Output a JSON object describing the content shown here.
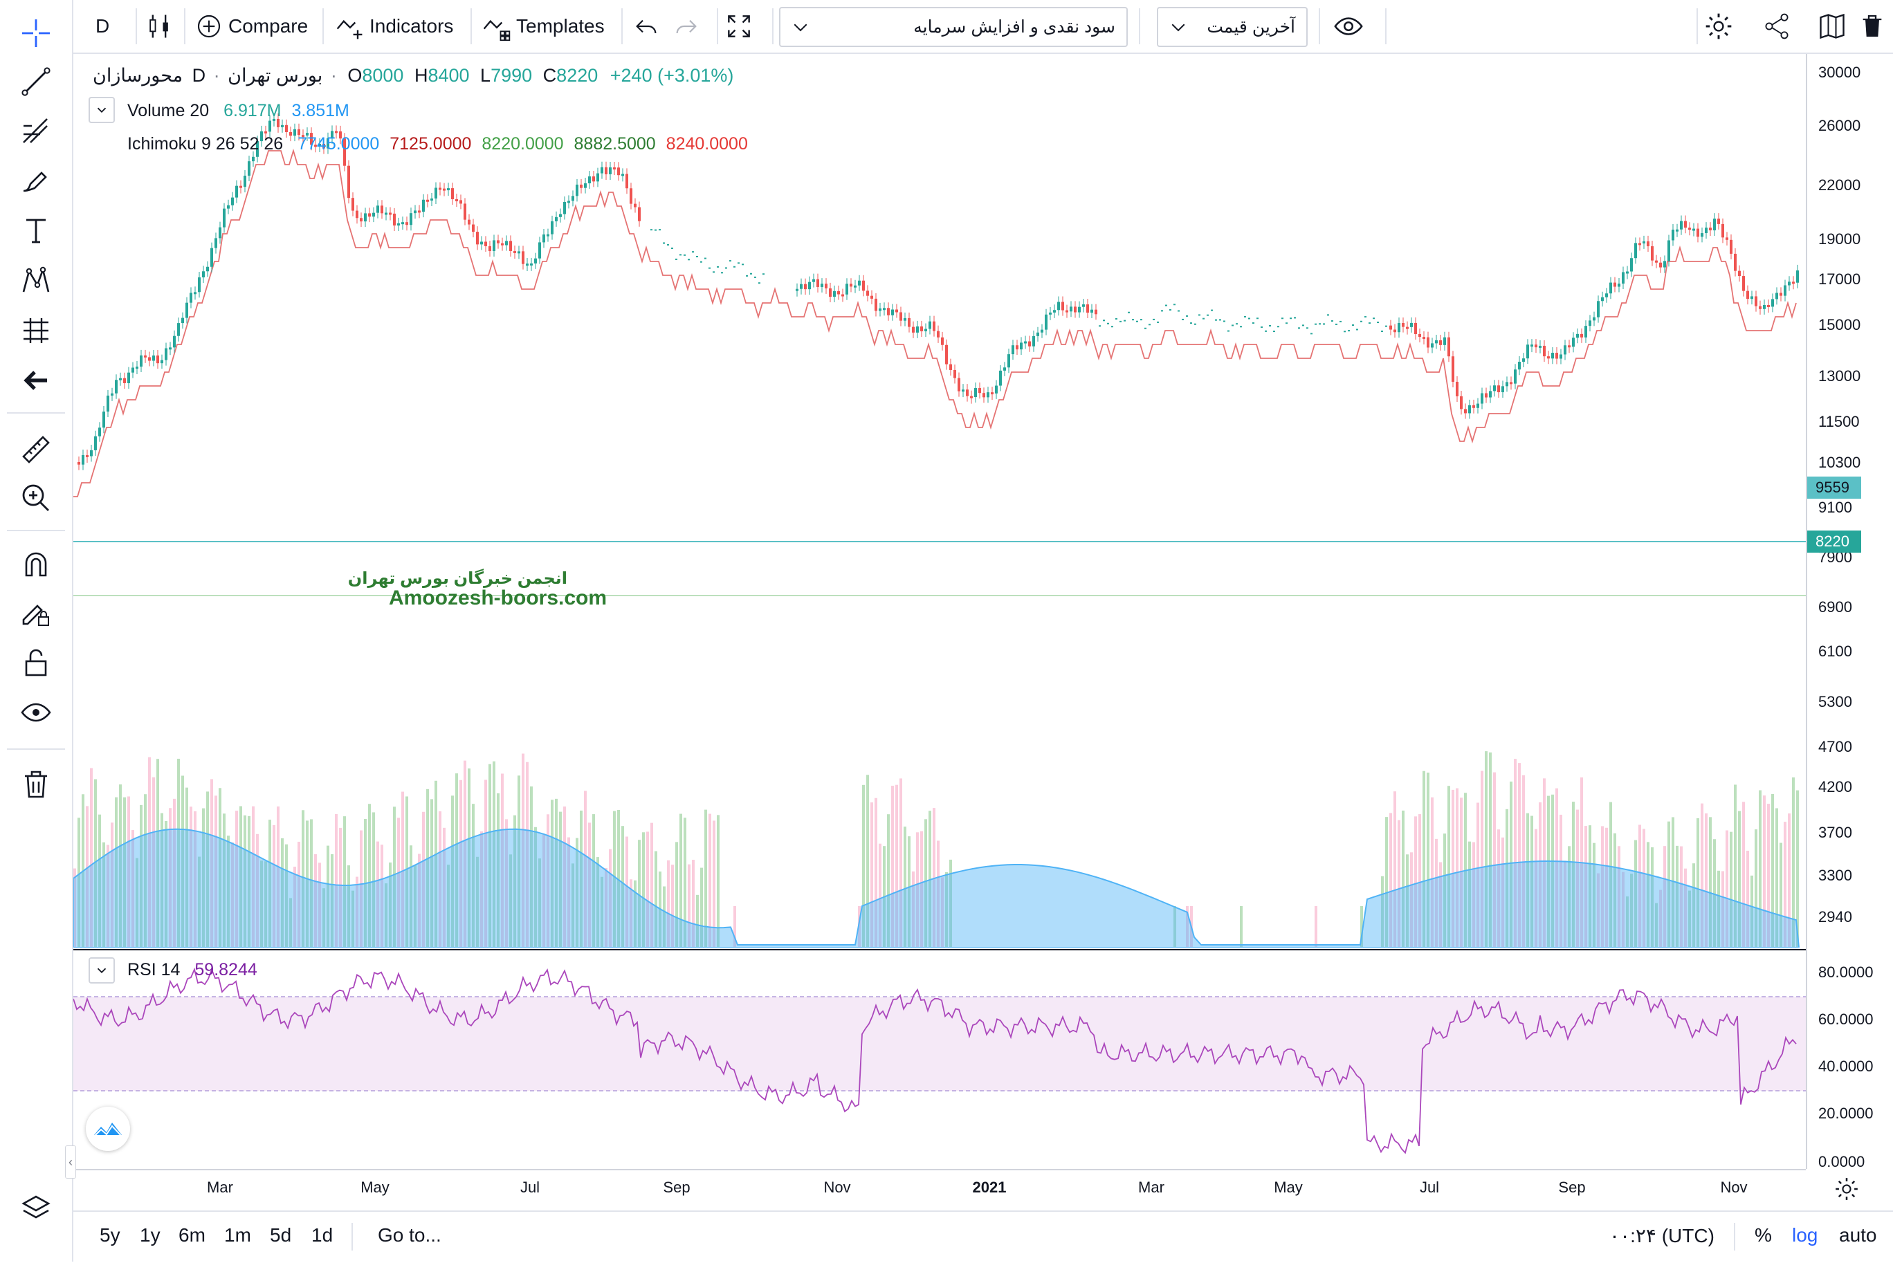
{
  "toolbar": {
    "interval": "D",
    "compare_label": "Compare",
    "indicators_label": "Indicators",
    "templates_label": "Templates",
    "strategy_select": "سود نقدی و افزایش سرمایه",
    "price_select": "آخرین قیمت"
  },
  "legend": {
    "symbol": "محورسازان",
    "interval": "D",
    "exchange": "بورس تهران",
    "o_label": "O",
    "o_value": "8000",
    "h_label": "H",
    "h_value": "8400",
    "l_label": "L",
    "l_value": "7990",
    "c_label": "C",
    "c_value": "8220",
    "change": "+240 (+3.01%)",
    "volume_label": "Volume 20",
    "volume_value1": "6.917M",
    "volume_value2": "3.851M",
    "ichimoku_label": "Ichimoku 9 26 52 26",
    "ichimoku_values": [
      "7745.0000",
      "7125.0000",
      "8220.0000",
      "8882.5000",
      "8240.0000"
    ],
    "rsi_label": "RSI 14",
    "rsi_value": "59.8244"
  },
  "watermark": {
    "persian": "انجمن خبرگان بورس تهران",
    "latin": "Amoozesh-boors.com"
  },
  "price_axis": {
    "ticks": [
      "30000",
      "26000",
      "22000",
      "19000",
      "17000",
      "15000",
      "13000",
      "11500",
      "10300",
      "9100",
      "7900",
      "6900",
      "6100",
      "5300",
      "4700",
      "4200",
      "3700",
      "3300",
      "2940"
    ],
    "hline_badge": "9559",
    "last_badge": "8220"
  },
  "rsi_axis": {
    "ticks": [
      "80.0000",
      "60.0000",
      "40.0000",
      "20.0000",
      "0.0000"
    ]
  },
  "time_axis": {
    "labels": [
      "Mar",
      "May",
      "Jul",
      "Sep",
      "Nov",
      "2021",
      "Mar",
      "May",
      "Jul",
      "Sep",
      "Nov"
    ]
  },
  "bottom": {
    "ranges": [
      "5y",
      "1y",
      "6m",
      "1m",
      "5d",
      "1d"
    ],
    "goto": "Go to...",
    "time": "۰۰:۲۴ (UTC)",
    "percent": "%",
    "log": "log",
    "auto": "auto"
  },
  "colors": {
    "up": "#26a69a",
    "down": "#ef5350",
    "ichimoku_conv": "#2196f3",
    "ichimoku_base": "#b71c1c",
    "ichimoku_lag": "#43a047",
    "ichimoku_spanA": "#2e7d32",
    "ichimoku_spanB": "#e53935",
    "rsi": "#9c27b0",
    "hline": "#5bc0c6"
  }
}
